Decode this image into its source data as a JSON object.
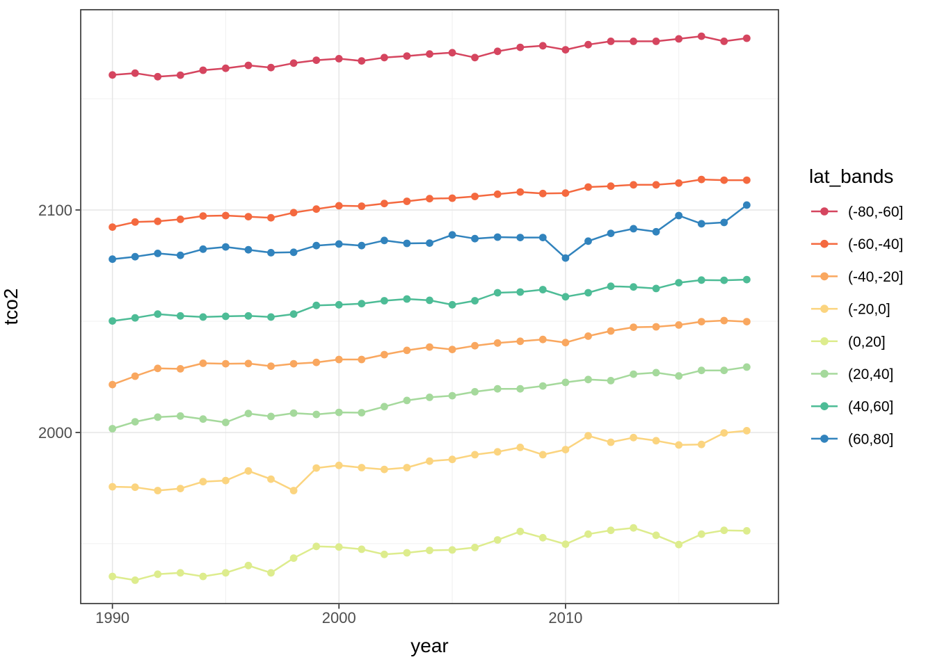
{
  "figure": {
    "x_title": "year",
    "y_title": "tco2",
    "legend_title": "lat_bands"
  },
  "chart_data": {
    "type": "line",
    "title": "",
    "xlabel": "year",
    "ylabel": "tco2",
    "legend_title": "lat_bands",
    "legend_position": "right",
    "grid": true,
    "marker": "circle",
    "xlim": [
      1988.6,
      2019.4
    ],
    "ylim": [
      1923.1,
      2190
    ],
    "x_ticks": [
      1990,
      2000,
      2010
    ],
    "x_minor_gridlines": [
      1995,
      2005,
      2015
    ],
    "y_ticks": [
      2000,
      2100
    ],
    "y_minor_gridlines": [
      1950,
      2050,
      2150
    ],
    "x": [
      1990,
      1991,
      1992,
      1993,
      1994,
      1995,
      1996,
      1997,
      1998,
      1999,
      2000,
      2001,
      2002,
      2003,
      2004,
      2005,
      2006,
      2007,
      2008,
      2009,
      2010,
      2011,
      2012,
      2013,
      2014,
      2015,
      2016,
      2017,
      2018
    ],
    "series": [
      {
        "name": "(-80,-60]",
        "color": "#d5455f",
        "values": [
          2160.7,
          2161.5,
          2159.9,
          2160.6,
          2162.8,
          2163.7,
          2165.0,
          2164.0,
          2166.0,
          2167.3,
          2168.0,
          2167.0,
          2168.5,
          2169.2,
          2170.1,
          2170.7,
          2168.5,
          2171.3,
          2173.1,
          2173.8,
          2172.0,
          2174.3,
          2175.8,
          2175.8,
          2175.8,
          2176.9,
          2178.1,
          2175.8,
          2177.2
        ]
      },
      {
        "name": "(-60,-40]",
        "color": "#f4693f",
        "values": [
          2092.3,
          2094.6,
          2094.9,
          2095.8,
          2097.3,
          2097.5,
          2097.0,
          2096.5,
          2098.8,
          2100.4,
          2101.9,
          2101.7,
          2102.9,
          2103.9,
          2105.1,
          2105.3,
          2106.1,
          2107.1,
          2108.1,
          2107.4,
          2107.6,
          2110.3,
          2110.7,
          2111.3,
          2111.3,
          2112.1,
          2113.7,
          2113.4,
          2113.4
        ]
      },
      {
        "name": "(-40,-20]",
        "color": "#f9a75f",
        "values": [
          2021.5,
          2025.3,
          2028.8,
          2028.6,
          2031.1,
          2030.9,
          2031.0,
          2029.8,
          2030.9,
          2031.5,
          2032.8,
          2032.8,
          2035.0,
          2036.9,
          2038.4,
          2037.3,
          2039.0,
          2040.2,
          2041.0,
          2041.8,
          2040.4,
          2043.3,
          2045.6,
          2047.3,
          2047.5,
          2048.3,
          2049.8,
          2050.3,
          2049.8
        ]
      },
      {
        "name": "(-20,0]",
        "color": "#fbd47f",
        "values": [
          1975.6,
          1975.4,
          1973.9,
          1974.8,
          1977.9,
          1978.4,
          1982.7,
          1979.0,
          1973.9,
          1984.0,
          1985.2,
          1984.2,
          1983.4,
          1984.2,
          1987.1,
          1987.9,
          1990.0,
          1991.3,
          1993.3,
          1990.0,
          1992.3,
          1998.5,
          1995.6,
          1997.7,
          1996.3,
          1994.4,
          1994.6,
          1999.8,
          2000.8
        ]
      },
      {
        "name": "(0,20]",
        "color": "#ddec8d",
        "values": [
          1935.3,
          1933.6,
          1936.3,
          1936.9,
          1935.3,
          1936.9,
          1940.2,
          1936.9,
          1943.5,
          1948.8,
          1948.5,
          1947.5,
          1945.2,
          1945.9,
          1947.0,
          1947.2,
          1948.3,
          1951.7,
          1955.5,
          1952.7,
          1949.8,
          1954.3,
          1956.0,
          1957.1,
          1953.8,
          1949.6,
          1954.3,
          1956.0,
          1955.8
        ]
      },
      {
        "name": "(20,40]",
        "color": "#a5d99c",
        "values": [
          2001.7,
          2004.8,
          2006.9,
          2007.4,
          2006.0,
          2004.5,
          2008.5,
          2007.2,
          2008.7,
          2008.1,
          2009.0,
          2008.9,
          2011.6,
          2014.4,
          2015.8,
          2016.5,
          2018.3,
          2019.6,
          2019.6,
          2020.9,
          2022.5,
          2023.8,
          2023.3,
          2026.2,
          2026.9,
          2025.4,
          2027.9,
          2027.9,
          2029.4
        ]
      },
      {
        "name": "(40,60]",
        "color": "#4dbc96",
        "values": [
          2050.1,
          2051.5,
          2053.2,
          2052.4,
          2051.9,
          2052.2,
          2052.4,
          2051.9,
          2053.2,
          2057.1,
          2057.4,
          2057.9,
          2059.2,
          2060.0,
          2059.4,
          2057.4,
          2059.2,
          2062.8,
          2063.1,
          2064.2,
          2061.0,
          2062.8,
          2065.7,
          2065.4,
          2064.7,
          2067.3,
          2068.5,
          2068.4,
          2068.7
        ]
      },
      {
        "name": "(60,80]",
        "color": "#3183bd",
        "values": [
          2077.9,
          2079.0,
          2080.5,
          2079.6,
          2082.4,
          2083.4,
          2082.1,
          2080.8,
          2081.0,
          2084.0,
          2084.7,
          2084.0,
          2086.3,
          2085.0,
          2085.1,
          2088.8,
          2087.1,
          2087.8,
          2087.6,
          2087.6,
          2078.4,
          2086.0,
          2089.5,
          2091.6,
          2090.2,
          2097.5,
          2093.8,
          2094.4,
          2102.2
        ]
      }
    ]
  }
}
